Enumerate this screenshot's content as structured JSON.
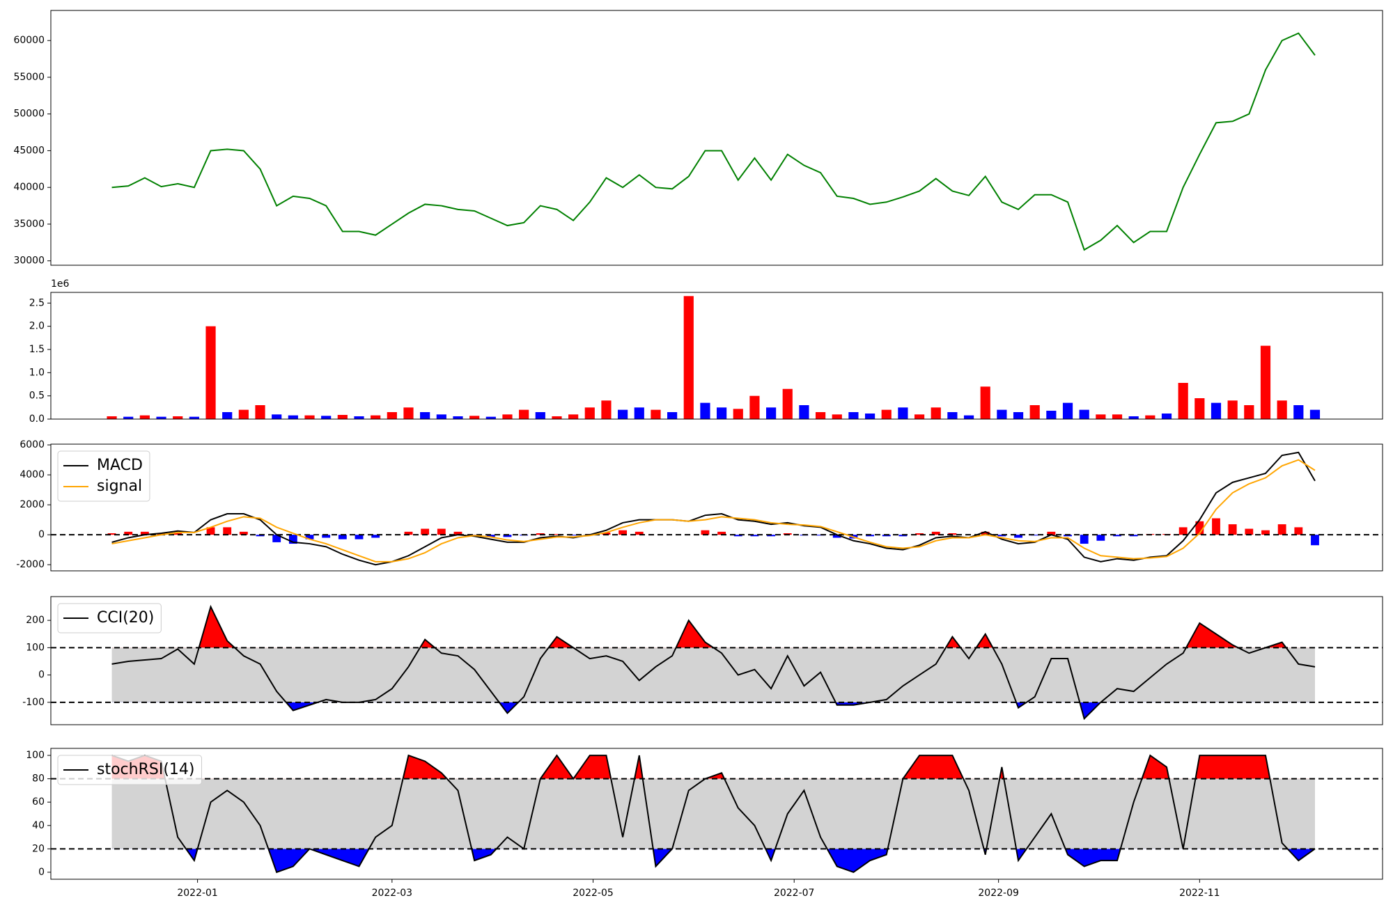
{
  "chart_data": [
    {
      "type": "line",
      "xlim": [
        -44.5,
        359.5
      ],
      "ylim": [
        29400,
        64100
      ],
      "yticks": [
        30000,
        35000,
        40000,
        45000,
        50000,
        55000,
        60000
      ],
      "x": [
        -26,
        -21,
        -16,
        -11,
        -6,
        -1,
        4,
        9,
        14,
        19,
        24,
        29,
        34,
        39,
        44,
        49,
        54,
        59,
        64,
        69,
        74,
        79,
        84,
        89,
        94,
        99,
        104,
        109,
        114,
        119,
        124,
        129,
        134,
        139,
        144,
        149,
        154,
        159,
        164,
        169,
        174,
        179,
        184,
        189,
        194,
        199,
        204,
        209,
        214,
        219,
        224,
        229,
        234,
        239,
        244,
        249,
        254,
        259,
        264,
        269,
        274,
        279,
        284,
        289,
        294,
        299,
        304,
        309,
        314,
        319,
        324,
        329,
        334,
        339
      ],
      "series": [
        {
          "color": "#008000",
          "values": [
            40000,
            40200,
            41300,
            40100,
            40500,
            40000,
            45000,
            45200,
            45000,
            42500,
            37500,
            38800,
            38500,
            37500,
            34000,
            34000,
            33500,
            35000,
            36500,
            37700,
            37500,
            37000,
            36800,
            35800,
            34800,
            35200,
            37500,
            37000,
            35500,
            38000,
            41300,
            40000,
            41700,
            40000,
            39800,
            41500,
            45000,
            45000,
            41000,
            44000,
            41000,
            44500,
            43000,
            42000,
            38800,
            38500,
            37700,
            38000,
            38700,
            39500,
            41200,
            39500,
            38900,
            41500,
            38000,
            37000,
            39000,
            39000,
            38000,
            31500,
            32800,
            34800,
            32500,
            34000,
            34000,
            40000,
            44500,
            48800,
            49000,
            50000,
            56000,
            60000,
            61000,
            58000
          ]
        }
      ]
    },
    {
      "type": "bar",
      "xlim": [
        -44.5,
        359.5
      ],
      "ylim": [
        0,
        2730000
      ],
      "y_offset_label": "1e6",
      "yticks": [
        {
          "value": 0,
          "label": "0.0"
        },
        {
          "value": 500000,
          "label": "0.5"
        },
        {
          "value": 1000000,
          "label": "1.0"
        },
        {
          "value": 1500000,
          "label": "1.5"
        },
        {
          "value": 2000000,
          "label": "2.0"
        },
        {
          "value": 2500000,
          "label": "2.5"
        }
      ],
      "x": [
        -26,
        -21,
        -16,
        -11,
        -6,
        -1,
        4,
        9,
        14,
        19,
        24,
        29,
        34,
        39,
        44,
        49,
        54,
        59,
        64,
        69,
        74,
        79,
        84,
        89,
        94,
        99,
        104,
        109,
        114,
        119,
        124,
        129,
        134,
        139,
        144,
        149,
        154,
        159,
        164,
        169,
        174,
        179,
        184,
        189,
        194,
        199,
        204,
        209,
        214,
        219,
        224,
        229,
        234,
        239,
        244,
        249,
        254,
        259,
        264,
        269,
        274,
        279,
        284,
        289,
        294,
        299,
        304,
        309,
        314,
        319,
        324,
        329,
        334,
        339
      ],
      "values": [
        60000,
        50000,
        80000,
        50000,
        60000,
        50000,
        2000000,
        150000,
        200000,
        300000,
        100000,
        80000,
        80000,
        70000,
        90000,
        60000,
        80000,
        150000,
        250000,
        150000,
        100000,
        60000,
        70000,
        50000,
        100000,
        200000,
        150000,
        60000,
        100000,
        250000,
        400000,
        200000,
        250000,
        200000,
        150000,
        2650000,
        350000,
        250000,
        220000,
        500000,
        250000,
        650000,
        300000,
        150000,
        100000,
        150000,
        120000,
        200000,
        250000,
        100000,
        250000,
        150000,
        80000,
        700000,
        200000,
        150000,
        300000,
        180000,
        350000,
        200000,
        100000,
        100000,
        60000,
        80000,
        120000,
        780000,
        450000,
        350000,
        400000,
        300000,
        1580000,
        400000,
        300000,
        200000
      ],
      "colors": [
        "#ff0000",
        "#0000ff",
        "#ff0000",
        "#0000ff",
        "#ff0000",
        "#0000ff",
        "#ff0000",
        "#0000ff",
        "#ff0000",
        "#ff0000",
        "#0000ff",
        "#0000ff",
        "#ff0000",
        "#0000ff",
        "#ff0000",
        "#0000ff",
        "#ff0000",
        "#ff0000",
        "#ff0000",
        "#0000ff",
        "#0000ff",
        "#0000ff",
        "#ff0000",
        "#0000ff",
        "#ff0000",
        "#ff0000",
        "#0000ff",
        "#ff0000",
        "#ff0000",
        "#ff0000",
        "#ff0000",
        "#0000ff",
        "#0000ff",
        "#ff0000",
        "#0000ff",
        "#ff0000",
        "#0000ff",
        "#0000ff",
        "#ff0000",
        "#ff0000",
        "#0000ff",
        "#ff0000",
        "#0000ff",
        "#ff0000",
        "#ff0000",
        "#0000ff",
        "#0000ff",
        "#ff0000",
        "#0000ff",
        "#ff0000",
        "#ff0000",
        "#0000ff",
        "#0000ff",
        "#ff0000",
        "#0000ff",
        "#0000ff",
        "#ff0000",
        "#0000ff",
        "#0000ff",
        "#0000ff",
        "#ff0000",
        "#ff0000",
        "#0000ff",
        "#ff0000",
        "#0000ff",
        "#ff0000",
        "#ff0000",
        "#0000ff",
        "#ff0000",
        "#ff0000",
        "#ff0000",
        "#ff0000",
        "#0000ff",
        "#0000ff"
      ]
    },
    {
      "type": "line",
      "xlim": [
        -44.5,
        359.5
      ],
      "ylim": [
        -2410,
        6050
      ],
      "legend": "upper left",
      "hline": 0,
      "yticks": [
        -2000,
        0,
        2000,
        4000,
        6000
      ],
      "x": [
        -26,
        -21,
        -16,
        -11,
        -6,
        -1,
        4,
        9,
        14,
        19,
        24,
        29,
        34,
        39,
        44,
        49,
        54,
        59,
        64,
        69,
        74,
        79,
        84,
        89,
        94,
        99,
        104,
        109,
        114,
        119,
        124,
        129,
        134,
        139,
        144,
        149,
        154,
        159,
        164,
        169,
        174,
        179,
        184,
        189,
        194,
        199,
        204,
        209,
        214,
        219,
        224,
        229,
        234,
        239,
        244,
        249,
        254,
        259,
        264,
        269,
        274,
        279,
        284,
        289,
        294,
        299,
        304,
        309,
        314,
        319,
        324,
        329,
        334,
        339
      ],
      "series": [
        {
          "name": "MACD",
          "color": "#000000",
          "values": [
            -500,
            -200,
            0,
            100,
            250,
            150,
            1000,
            1400,
            1400,
            1000,
            0,
            -500,
            -600,
            -800,
            -1300,
            -1700,
            -2000,
            -1800,
            -1400,
            -800,
            -200,
            0,
            -100,
            -300,
            -500,
            -500,
            -200,
            -100,
            -200,
            0,
            300,
            800,
            1000,
            1000,
            1000,
            900,
            1300,
            1400,
            1000,
            900,
            700,
            800,
            600,
            500,
            0,
            -400,
            -600,
            -900,
            -1000,
            -700,
            -200,
            -100,
            -200,
            200,
            -300,
            -600,
            -500,
            0,
            -300,
            -1500,
            -1800,
            -1600,
            -1700,
            -1500,
            -1400,
            -400,
            1000,
            2800,
            3500,
            3800,
            4100,
            5300,
            5500,
            3600
          ]
        },
        {
          "name": "signal",
          "color": "#ffa500",
          "values": [
            -600,
            -400,
            -200,
            0,
            150,
            150,
            500,
            900,
            1200,
            1100,
            500,
            100,
            -300,
            -600,
            -1000,
            -1400,
            -1800,
            -1800,
            -1600,
            -1200,
            -600,
            -200,
            -50,
            -150,
            -350,
            -450,
            -300,
            -150,
            -150,
            -50,
            150,
            500,
            800,
            1000,
            1000,
            900,
            1000,
            1200,
            1100,
            1000,
            800,
            700,
            650,
            550,
            200,
            -150,
            -500,
            -800,
            -900,
            -800,
            -400,
            -200,
            -200,
            0,
            -200,
            -400,
            -450,
            -200,
            -200,
            -900,
            -1400,
            -1500,
            -1600,
            -1550,
            -1450,
            -900,
            100,
            1700,
            2800,
            3400,
            3800,
            4600,
            5000,
            4300
          ]
        }
      ],
      "histogram": {
        "positive_color": "#ff0000",
        "negative_color": "#0000ff",
        "values": [
          100,
          200,
          200,
          100,
          100,
          0,
          500,
          500,
          200,
          -100,
          -500,
          -600,
          -300,
          -200,
          -300,
          -300,
          -200,
          0,
          200,
          400,
          400,
          200,
          -50,
          -150,
          -150,
          -50,
          100,
          50,
          -50,
          50,
          150,
          300,
          200,
          0,
          0,
          0,
          300,
          200,
          -100,
          -100,
          -100,
          100,
          -50,
          -50,
          -200,
          -250,
          -100,
          -100,
          -100,
          100,
          200,
          100,
          0,
          200,
          -100,
          -200,
          -50,
          200,
          -100,
          -600,
          -400,
          -100,
          -100,
          50,
          50,
          500,
          900,
          1100,
          700,
          400,
          300,
          700,
          500,
          -700
        ]
      }
    },
    {
      "type": "line",
      "xlim": [
        -44.5,
        359.5
      ],
      "ylim": [
        -182,
        287
      ],
      "legend": "upper left",
      "levels": [
        100,
        -100
      ],
      "band_color": "#d3d3d3",
      "fill_above": "#ff0000",
      "fill_below": "#0000ff",
      "yticks": [
        -100,
        0,
        100,
        200
      ],
      "x": [
        -26,
        -21,
        -16,
        -11,
        -6,
        -1,
        4,
        9,
        14,
        19,
        24,
        29,
        34,
        39,
        44,
        49,
        54,
        59,
        64,
        69,
        74,
        79,
        84,
        89,
        94,
        99,
        104,
        109,
        114,
        119,
        124,
        129,
        134,
        139,
        144,
        149,
        154,
        159,
        164,
        169,
        174,
        179,
        184,
        189,
        194,
        199,
        204,
        209,
        214,
        219,
        224,
        229,
        234,
        239,
        244,
        249,
        254,
        259,
        264,
        269,
        274,
        279,
        284,
        289,
        294,
        299,
        304,
        309,
        314,
        319,
        324,
        329,
        334,
        339
      ],
      "series": [
        {
          "name": "CCI(20)",
          "color": "#000000",
          "values": [
            40,
            50,
            55,
            60,
            95,
            40,
            250,
            125,
            70,
            40,
            -60,
            -130,
            -110,
            -90,
            -100,
            -100,
            -90,
            -50,
            30,
            130,
            80,
            70,
            20,
            -60,
            -140,
            -80,
            60,
            140,
            100,
            60,
            70,
            50,
            -20,
            30,
            70,
            200,
            120,
            80,
            0,
            20,
            -50,
            70,
            -40,
            10,
            -110,
            -110,
            -100,
            -90,
            -40,
            0,
            40,
            140,
            60,
            150,
            40,
            -120,
            -80,
            60,
            60,
            -160,
            -100,
            -50,
            -60,
            -10,
            40,
            80,
            190,
            150,
            110,
            80,
            100,
            120,
            40,
            30
          ]
        }
      ]
    },
    {
      "type": "line",
      "xlim": [
        -44.5,
        359.5
      ],
      "ylim": [
        -6,
        106
      ],
      "legend": "upper left",
      "levels": [
        80,
        20
      ],
      "band_color": "#d3d3d3",
      "fill_above": "#ff0000",
      "fill_below": "#0000ff",
      "yticks": [
        0,
        20,
        40,
        60,
        80,
        100
      ],
      "xticks": [
        {
          "value": 0,
          "label": "2022-01"
        },
        {
          "value": 59,
          "label": "2022-03"
        },
        {
          "value": 120,
          "label": "2022-05"
        },
        {
          "value": 181,
          "label": "2022-07"
        },
        {
          "value": 243,
          "label": "2022-09"
        },
        {
          "value": 304,
          "label": "2022-11"
        }
      ],
      "x": [
        -26,
        -21,
        -16,
        -11,
        -6,
        -1,
        4,
        9,
        14,
        19,
        24,
        29,
        34,
        39,
        44,
        49,
        54,
        59,
        64,
        69,
        74,
        79,
        84,
        89,
        94,
        99,
        104,
        109,
        114,
        119,
        124,
        129,
        134,
        139,
        144,
        149,
        154,
        159,
        164,
        169,
        174,
        179,
        184,
        189,
        194,
        199,
        204,
        209,
        214,
        219,
        224,
        229,
        234,
        239,
        244,
        249,
        254,
        259,
        264,
        269,
        274,
        279,
        284,
        289,
        294,
        299,
        304,
        309,
        314,
        319,
        324,
        329,
        334,
        339
      ],
      "series": [
        {
          "name": "stochRSI(14)",
          "color": "#000000",
          "values": [
            100,
            95,
            100,
            95,
            30,
            10,
            60,
            70,
            60,
            40,
            0,
            5,
            20,
            15,
            10,
            5,
            30,
            40,
            100,
            95,
            85,
            70,
            10,
            15,
            30,
            20,
            80,
            100,
            80,
            100,
            100,
            30,
            100,
            5,
            20,
            70,
            80,
            85,
            55,
            40,
            10,
            50,
            70,
            30,
            5,
            0,
            10,
            15,
            80,
            100,
            100,
            100,
            70,
            15,
            90,
            10,
            30,
            50,
            15,
            5,
            10,
            10,
            60,
            100,
            90,
            20,
            100,
            100,
            100,
            100,
            100,
            25,
            10,
            20
          ]
        }
      ]
    }
  ]
}
